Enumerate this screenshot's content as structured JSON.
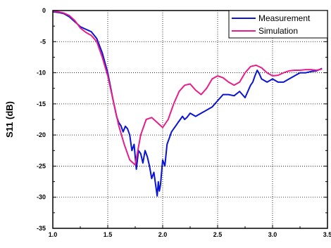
{
  "chart_data": {
    "type": "line",
    "title": "",
    "xlabel": "",
    "ylabel": "S11 (dB)",
    "xlim": [
      1.0,
      3.5
    ],
    "ylim": [
      -35,
      0
    ],
    "xticks": [
      1.0,
      1.5,
      2.0,
      2.5,
      3.0,
      3.5
    ],
    "xtick_labels": [
      "1.0",
      "1.5",
      "2.0",
      "2.5",
      "3.0",
      "3.5"
    ],
    "yticks": [
      0,
      -5,
      -10,
      -15,
      -20,
      -25,
      -30,
      -35
    ],
    "ytick_labels": [
      "0",
      "-5",
      "-10",
      "-15",
      "-20",
      "-25",
      "-30",
      "-35"
    ],
    "grid": true,
    "legend_position": "top-right",
    "series": [
      {
        "name": "Measurement",
        "color": "#0a14d2",
        "x": [
          1.0,
          1.05,
          1.1,
          1.15,
          1.2,
          1.25,
          1.3,
          1.35,
          1.4,
          1.45,
          1.5,
          1.55,
          1.58,
          1.6,
          1.62,
          1.64,
          1.66,
          1.68,
          1.7,
          1.72,
          1.74,
          1.76,
          1.78,
          1.8,
          1.82,
          1.84,
          1.86,
          1.88,
          1.9,
          1.92,
          1.94,
          1.95,
          1.96,
          1.97,
          1.98,
          2.0,
          2.02,
          2.04,
          2.06,
          2.08,
          2.1,
          2.12,
          2.14,
          2.16,
          2.18,
          2.2,
          2.22,
          2.25,
          2.3,
          2.35,
          2.4,
          2.45,
          2.5,
          2.55,
          2.6,
          2.65,
          2.7,
          2.75,
          2.8,
          2.82,
          2.84,
          2.86,
          2.88,
          2.9,
          2.95,
          3.0,
          3.05,
          3.1,
          3.15,
          3.2,
          3.25,
          3.3,
          3.35,
          3.4,
          3.45
        ],
        "y": [
          -0.2,
          -0.3,
          -0.5,
          -1.0,
          -1.8,
          -2.6,
          -3.0,
          -3.4,
          -4.5,
          -6.8,
          -10.0,
          -14.5,
          -17.0,
          -18.0,
          -18.5,
          -19.5,
          -18.6,
          -19.0,
          -20.0,
          -22.5,
          -21.5,
          -25.5,
          -22.5,
          -23.0,
          -24.5,
          -22.5,
          -23.5,
          -25.0,
          -27.0,
          -26.0,
          -28.5,
          -29.8,
          -27.5,
          -29.0,
          -28.0,
          -24.0,
          -25.0,
          -21.5,
          -20.5,
          -19.5,
          -19.0,
          -18.5,
          -18.0,
          -17.5,
          -17.0,
          -17.5,
          -17.2,
          -16.5,
          -17.0,
          -16.5,
          -16.0,
          -15.5,
          -14.5,
          -13.5,
          -13.5,
          -13.7,
          -13.0,
          -14.0,
          -12.0,
          -11.5,
          -10.5,
          -9.6,
          -10.2,
          -11.0,
          -11.5,
          -11.0,
          -11.5,
          -11.5,
          -11.0,
          -10.5,
          -10.0,
          -10.0,
          -9.8,
          -9.7,
          -9.3
        ]
      },
      {
        "name": "Simulation",
        "color": "#e61e8c",
        "x": [
          1.0,
          1.05,
          1.1,
          1.15,
          1.2,
          1.25,
          1.3,
          1.35,
          1.4,
          1.45,
          1.5,
          1.55,
          1.6,
          1.65,
          1.7,
          1.75,
          1.8,
          1.85,
          1.9,
          1.95,
          2.0,
          2.05,
          2.1,
          2.15,
          2.2,
          2.25,
          2.3,
          2.35,
          2.4,
          2.45,
          2.5,
          2.55,
          2.6,
          2.65,
          2.7,
          2.75,
          2.8,
          2.85,
          2.9,
          2.95,
          3.0,
          3.05,
          3.1,
          3.15,
          3.2,
          3.25,
          3.3,
          3.35,
          3.4,
          3.45
        ],
        "y": [
          -0.1,
          -0.2,
          -0.4,
          -0.8,
          -1.6,
          -2.8,
          -3.5,
          -4.0,
          -5.0,
          -7.5,
          -10.5,
          -14.5,
          -18.5,
          -21.5,
          -24.0,
          -24.8,
          -20.0,
          -17.5,
          -17.2,
          -18.0,
          -18.8,
          -17.5,
          -15.0,
          -13.0,
          -12.0,
          -11.8,
          -12.8,
          -13.5,
          -12.5,
          -11.0,
          -10.5,
          -10.8,
          -11.5,
          -12.0,
          -11.5,
          -10.0,
          -9.0,
          -8.8,
          -9.2,
          -10.0,
          -10.5,
          -10.4,
          -10.0,
          -9.7,
          -9.6,
          -9.6,
          -9.5,
          -9.5,
          -9.6,
          -9.4
        ]
      }
    ]
  }
}
